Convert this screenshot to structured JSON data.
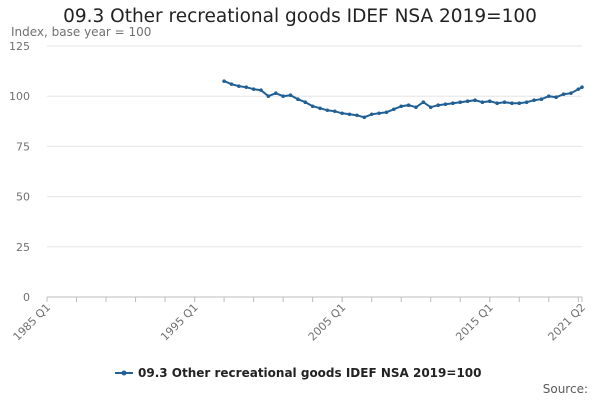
{
  "chart_data": {
    "type": "line",
    "title": "09.3 Other recreational goods IDEF NSA 2019=100",
    "ylabel": "Index, base year = 100",
    "xlabel": "",
    "ylim": [
      0,
      125
    ],
    "yticks": [
      0,
      25,
      50,
      75,
      100,
      125
    ],
    "xlim": [
      "1985 Q1",
      "2021 Q2"
    ],
    "xticks": [
      "1985 Q1",
      "1995 Q1",
      "2005 Q1",
      "2015 Q1",
      "2021 Q2"
    ],
    "grid": true,
    "legend_position": "bottom",
    "source_label": "Source:",
    "colors": {
      "series": "#206095",
      "grid": "#e6e6e6"
    },
    "series": [
      {
        "name": "09.3 Other recreational goods IDEF NSA 2019=100",
        "x": [
          "1997 Q1",
          "1997 Q3",
          "1998 Q1",
          "1998 Q3",
          "1999 Q1",
          "1999 Q3",
          "2000 Q1",
          "2000 Q3",
          "2001 Q1",
          "2001 Q3",
          "2002 Q1",
          "2002 Q3",
          "2003 Q1",
          "2003 Q3",
          "2004 Q1",
          "2004 Q3",
          "2005 Q1",
          "2005 Q3",
          "2006 Q1",
          "2006 Q3",
          "2007 Q1",
          "2007 Q3",
          "2008 Q1",
          "2008 Q3",
          "2009 Q1",
          "2009 Q3",
          "2010 Q1",
          "2010 Q3",
          "2011 Q1",
          "2011 Q3",
          "2012 Q1",
          "2012 Q3",
          "2013 Q1",
          "2013 Q3",
          "2014 Q1",
          "2014 Q3",
          "2015 Q1",
          "2015 Q3",
          "2016 Q1",
          "2016 Q3",
          "2017 Q1",
          "2017 Q3",
          "2018 Q1",
          "2018 Q3",
          "2019 Q1",
          "2019 Q3",
          "2020 Q1",
          "2020 Q3",
          "2021 Q1",
          "2021 Q2"
        ],
        "values": [
          107.5,
          106,
          105,
          104.5,
          103.5,
          103,
          100,
          101.5,
          100,
          100.5,
          98.5,
          97,
          95,
          94,
          93,
          92.5,
          91.5,
          91,
          90.5,
          89.5,
          91,
          91.5,
          92,
          93.5,
          95,
          95.5,
          94.5,
          97,
          94.5,
          95.5,
          96,
          96.5,
          97,
          97.5,
          98,
          97,
          97.5,
          96.5,
          97,
          96.5,
          96.5,
          97,
          98,
          98.5,
          100,
          99.5,
          101,
          101.5,
          103.5,
          104.5
        ]
      }
    ]
  }
}
